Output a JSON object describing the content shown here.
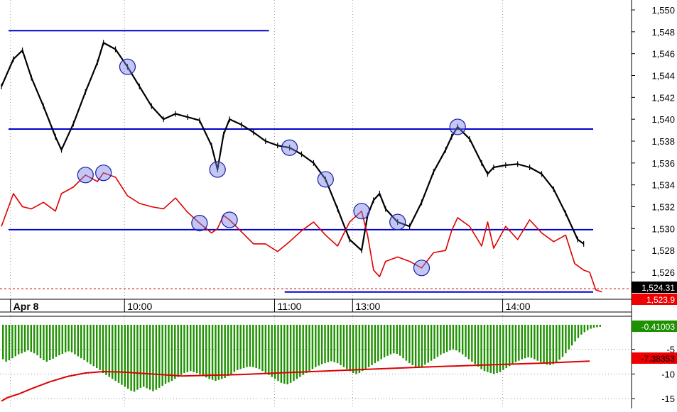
{
  "chart_data": [
    {
      "type": "line",
      "title": "",
      "xlabel": "",
      "ylabel": "",
      "x_ticks": [
        "Apr 8",
        "10:00",
        "11:00",
        "13:00",
        "14:00"
      ],
      "y_ticks": [
        "1,550",
        "1,548",
        "1,546",
        "1,544",
        "1,542",
        "1,540",
        "1,538",
        "1,536",
        "1,534",
        "1,532",
        "1,530",
        "1,528",
        "1,526"
      ],
      "ylim": [
        1524,
        1551
      ],
      "grid": true,
      "legend": "none",
      "price_label": "1,524.31",
      "secondary_label": "1,523.9",
      "horizontal_levels": [
        {
          "price": 1548.1,
          "from": 0.0,
          "to": 0.46,
          "color": "#0000cc"
        },
        {
          "price": 1539.1,
          "from": 0.0,
          "to": 1.0,
          "color": "#0000cc"
        },
        {
          "price": 1529.9,
          "from": 0.0,
          "to": 1.0,
          "color": "#0000cc"
        },
        {
          "price": 1524.2,
          "from": 0.46,
          "to": 1.0,
          "color": "#0000cc"
        },
        {
          "price": 1524.5,
          "from": 0.0,
          "to": 1.0,
          "color": "#cc0000",
          "dashed": true
        }
      ],
      "series": [
        {
          "color": "#000000",
          "x": [
            0.0,
            0.02,
            0.035,
            0.05,
            0.07,
            0.09,
            0.1,
            0.12,
            0.14,
            0.16,
            0.17,
            0.19,
            0.21,
            0.23,
            0.25,
            0.27,
            0.29,
            0.31,
            0.33,
            0.35,
            0.36,
            0.37,
            0.38,
            0.4,
            0.42,
            0.44,
            0.46,
            0.48,
            0.5,
            0.52,
            0.54,
            0.56,
            0.58,
            0.6,
            0.61,
            0.62,
            0.63,
            0.64,
            0.66,
            0.68,
            0.7,
            0.72,
            0.74,
            0.75,
            0.76,
            0.78,
            0.8,
            0.81,
            0.82,
            0.84,
            0.86,
            0.88,
            0.9,
            0.92,
            0.94,
            0.96,
            0.97
          ],
          "values": [
            1543.0,
            1545.5,
            1546.3,
            1543.8,
            1541.2,
            1538.4,
            1537.2,
            1539.6,
            1542.5,
            1545.2,
            1547.0,
            1546.4,
            1544.8,
            1543.0,
            1541.2,
            1540.0,
            1540.5,
            1540.2,
            1539.9,
            1537.6,
            1535.4,
            1538.6,
            1540.0,
            1539.5,
            1538.8,
            1538.0,
            1537.6,
            1537.4,
            1536.8,
            1536.0,
            1534.5,
            1531.8,
            1529.0,
            1528.0,
            1531.2,
            1532.6,
            1533.2,
            1531.8,
            1530.6,
            1530.2,
            1532.4,
            1535.2,
            1537.2,
            1538.4,
            1539.3,
            1538.2,
            1536.0,
            1535.0,
            1535.6,
            1535.8,
            1535.9,
            1535.6,
            1535.0,
            1533.6,
            1531.4,
            1529.0,
            1528.6
          ]
        },
        {
          "color": "#dd0000",
          "x": [
            0.0,
            0.02,
            0.035,
            0.05,
            0.07,
            0.09,
            0.1,
            0.12,
            0.14,
            0.16,
            0.17,
            0.19,
            0.21,
            0.23,
            0.25,
            0.27,
            0.29,
            0.31,
            0.33,
            0.35,
            0.36,
            0.37,
            0.38,
            0.4,
            0.42,
            0.44,
            0.46,
            0.48,
            0.5,
            0.52,
            0.54,
            0.56,
            0.58,
            0.6,
            0.61,
            0.62,
            0.63,
            0.64,
            0.66,
            0.68,
            0.7,
            0.72,
            0.74,
            0.75,
            0.76,
            0.78,
            0.8,
            0.81,
            0.82,
            0.84,
            0.86,
            0.88,
            0.9,
            0.92,
            0.94,
            0.955,
            0.97,
            0.98,
            0.99,
            1.0
          ],
          "values": [
            1530.2,
            1533.2,
            1532.0,
            1531.8,
            1532.4,
            1531.6,
            1533.2,
            1533.8,
            1534.9,
            1534.3,
            1535.1,
            1534.7,
            1533.0,
            1532.3,
            1532.0,
            1531.8,
            1532.8,
            1531.5,
            1530.5,
            1529.6,
            1530.0,
            1531.2,
            1530.8,
            1529.7,
            1528.6,
            1528.6,
            1527.9,
            1528.8,
            1529.8,
            1530.6,
            1529.4,
            1528.4,
            1530.6,
            1531.6,
            1529.4,
            1526.2,
            1525.6,
            1527.0,
            1527.4,
            1527.0,
            1526.4,
            1527.8,
            1528.0,
            1529.8,
            1531.0,
            1530.2,
            1528.4,
            1530.6,
            1528.2,
            1530.2,
            1529.0,
            1530.8,
            1529.6,
            1528.8,
            1529.4,
            1526.8,
            1526.2,
            1526.0,
            1524.4,
            1524.2
          ]
        }
      ]
    },
    {
      "type": "bar",
      "title": "",
      "xlabel": "",
      "ylabel": "",
      "y_ticks": [
        "-5",
        "-10",
        "-15"
      ],
      "ylim": [
        -17.0,
        0.0
      ],
      "grid": true,
      "legend": "none",
      "value_label": "-0.41003",
      "signal_label": "-7.38353",
      "series": [
        {
          "color": "#1e9100",
          "values": [
            -7.0,
            -7.5,
            -7.2,
            -6.8,
            -6.4,
            -6.0,
            -5.8,
            -5.5,
            -5.2,
            -5.5,
            -5.8,
            -6.2,
            -6.8,
            -7.2,
            -7.5,
            -7.2,
            -6.9,
            -6.5,
            -6.2,
            -5.9,
            -5.6,
            -5.4,
            -5.6,
            -6.0,
            -6.4,
            -6.8,
            -7.2,
            -7.6,
            -8.0,
            -8.4,
            -8.8,
            -9.2,
            -9.8,
            -10.2,
            -10.6,
            -11.0,
            -11.4,
            -11.8,
            -12.2,
            -12.6,
            -13.0,
            -13.4,
            -13.6,
            -13.2,
            -12.8,
            -12.6,
            -12.9,
            -13.2,
            -13.5,
            -13.2,
            -12.8,
            -12.4,
            -12.0,
            -11.7,
            -11.4,
            -11.0,
            -10.6,
            -10.2,
            -9.8,
            -9.6,
            -9.4,
            -9.6,
            -9.8,
            -10.1,
            -10.4,
            -10.7,
            -11.0,
            -11.2,
            -11.4,
            -11.2,
            -11.0,
            -10.8,
            -10.4,
            -10.0,
            -9.6,
            -9.2,
            -9.0,
            -8.8,
            -8.6,
            -8.5,
            -8.6,
            -8.8,
            -9.0,
            -9.4,
            -9.8,
            -10.2,
            -10.6,
            -11.0,
            -11.4,
            -11.8,
            -12.0,
            -12.1,
            -11.8,
            -11.4,
            -11.0,
            -10.6,
            -10.2,
            -9.8,
            -9.4,
            -9.0,
            -8.6,
            -8.3,
            -8.0,
            -7.8,
            -7.6,
            -7.4,
            -7.6,
            -7.8,
            -8.2,
            -8.6,
            -9.0,
            -9.4,
            -9.8,
            -10.0,
            -9.8,
            -9.4,
            -9.0,
            -8.6,
            -8.2,
            -7.8,
            -7.4,
            -7.0,
            -6.6,
            -6.3,
            -6.0,
            -5.8,
            -5.9,
            -6.3,
            -6.8,
            -7.3,
            -7.8,
            -8.2,
            -8.5,
            -8.7,
            -8.5,
            -8.1,
            -7.7,
            -7.3,
            -6.9,
            -6.5,
            -6.1,
            -5.8,
            -5.5,
            -5.2,
            -5.0,
            -5.2,
            -5.6,
            -6.0,
            -6.5,
            -7.0,
            -7.5,
            -8.0,
            -8.5,
            -9.0,
            -9.4,
            -9.6,
            -9.8,
            -10.0,
            -9.8,
            -9.6,
            -9.2,
            -8.8,
            -8.4,
            -8.0,
            -7.6,
            -7.3,
            -7.0,
            -6.8,
            -6.6,
            -6.7,
            -7.0,
            -7.3,
            -7.6,
            -7.9,
            -8.1,
            -8.2,
            -8.0,
            -7.6,
            -7.1,
            -6.5,
            -5.8,
            -5.0,
            -4.2,
            -3.4,
            -2.7,
            -2.0,
            -1.5,
            -1.1,
            -0.8,
            -0.6,
            -0.5,
            -0.41
          ]
        },
        {
          "color": "#dd0000",
          "x": [
            0.0,
            0.01,
            0.03,
            0.05,
            0.08,
            0.11,
            0.14,
            0.17,
            0.2,
            0.25,
            0.3,
            0.4,
            0.5,
            0.6,
            0.7,
            0.8,
            0.9,
            0.98
          ],
          "values": [
            -15.5,
            -14.8,
            -14.0,
            -13.0,
            -11.6,
            -10.5,
            -9.8,
            -9.5,
            -9.6,
            -10.0,
            -10.4,
            -10.1,
            -9.6,
            -9.1,
            -8.6,
            -8.2,
            -7.8,
            -7.38
          ]
        }
      ]
    }
  ]
}
